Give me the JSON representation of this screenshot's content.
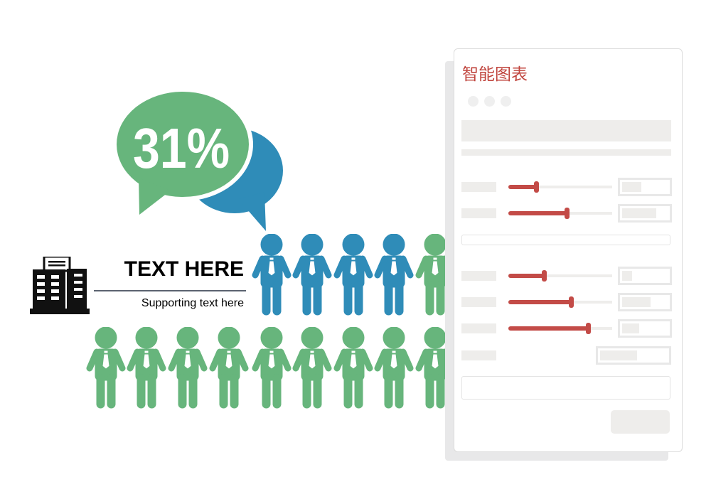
{
  "infographic": {
    "percent": "31%",
    "title": "TEXT HERE",
    "subtitle": "Supporting text here",
    "colors": {
      "green": "#67b57c",
      "blue": "#2f8cb8",
      "accent": "#c34b47"
    },
    "top_row": [
      "blue",
      "blue",
      "blue",
      "blue",
      "green"
    ],
    "bottom_row": [
      "green",
      "green",
      "green",
      "green",
      "green",
      "green",
      "green",
      "green",
      "green"
    ]
  },
  "panel": {
    "title": "智能图表",
    "sliders": [
      {
        "value_pct": 27
      },
      {
        "value_pct": 56
      },
      {
        "value_pct": 34
      },
      {
        "value_pct": 60
      },
      {
        "value_pct": 77
      }
    ]
  }
}
